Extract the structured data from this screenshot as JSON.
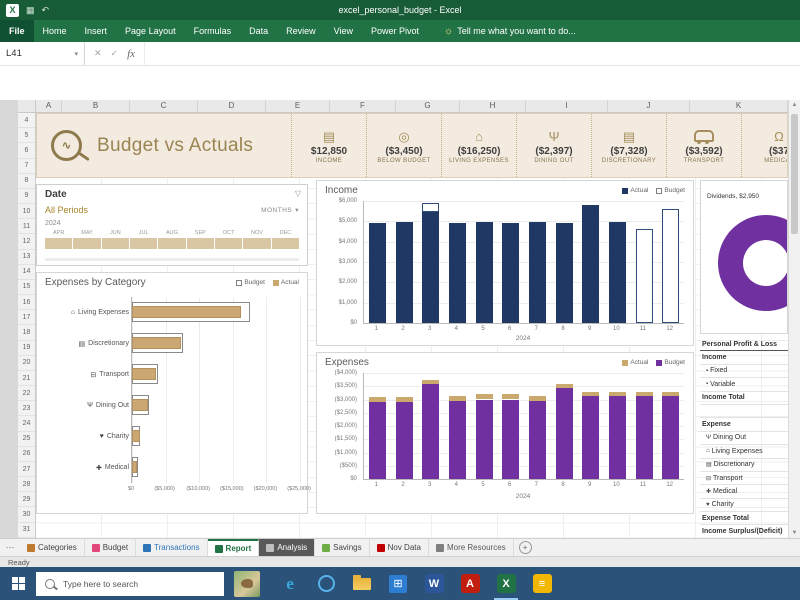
{
  "window": {
    "title": "excel_personal_budget - Excel",
    "quick_access_icons": [
      "excel-app-icon",
      "save-icon",
      "undo-icon"
    ]
  },
  "ribbon": {
    "tabs": [
      "File",
      "Home",
      "Insert",
      "Page Layout",
      "Formulas",
      "Data",
      "Review",
      "View",
      "Power Pivot"
    ],
    "tell_me": "Tell me what you want to do..."
  },
  "formula_bar": {
    "cell_ref": "L41",
    "formula": ""
  },
  "grid": {
    "col_headers": [
      "A",
      "B",
      "C",
      "D",
      "E",
      "F",
      "G",
      "H",
      "I",
      "J",
      "K"
    ],
    "row_start": 4,
    "row_end": 31
  },
  "banner": {
    "title": "Budget vs Actuals",
    "kpis": [
      {
        "icon": "cash-icon",
        "value": "$12,850",
        "label": "INCOME"
      },
      {
        "icon": "target-icon",
        "value": "($3,450)",
        "label": "BELOW BUDGET"
      },
      {
        "icon": "house-icon",
        "value": "($16,250)",
        "label": "LIVING EXPENSES"
      },
      {
        "icon": "dining-icon",
        "value": "($2,397)",
        "label": "DINING OUT"
      },
      {
        "icon": "card-icon",
        "value": "($7,328)",
        "label": "DISCRETIONARY"
      },
      {
        "icon": "car-icon",
        "value": "($3,592)",
        "label": "TRANSPORT"
      },
      {
        "icon": "stethoscope-icon",
        "value": "($37",
        "label": "MEDICAL"
      }
    ]
  },
  "slicer": {
    "title": "Date",
    "period_label": "All Periods",
    "granularity": "MONTHS",
    "year": "2024",
    "months": [
      "APR",
      "MAY",
      "JUN",
      "JUL",
      "AUG",
      "SEP",
      "OCT",
      "NOV",
      "DEC"
    ]
  },
  "chart_data": [
    {
      "id": "expenses_by_category",
      "type": "bar",
      "orientation": "horizontal",
      "title": "Expenses by Category",
      "legend": [
        {
          "label": "Budget",
          "swatch": "outline"
        },
        {
          "label": "Actual",
          "swatch": "#C9A96E"
        }
      ],
      "categories": [
        "Living Expenses",
        "Discretionary",
        "Transport",
        "Dining Out",
        "Charity",
        "Medical"
      ],
      "category_icons": [
        "house-icon",
        "card-icon",
        "car-icon",
        "dining-icon",
        "charity-icon",
        "medical-icon"
      ],
      "series": [
        {
          "name": "Actual",
          "values": [
            16250,
            7328,
            3592,
            2397,
            1150,
            750
          ]
        },
        {
          "name": "Budget",
          "values": [
            17500,
            7600,
            3800,
            2600,
            1250,
            850
          ]
        }
      ],
      "xticks": [
        "$0",
        "($5,000)",
        "($10,000)",
        "($15,000)",
        "($20,000)",
        "($25,000)"
      ],
      "xmax": 25000
    },
    {
      "id": "income",
      "type": "bar",
      "title": "Income",
      "legend": [
        {
          "label": "Actual",
          "swatch": "#1F3864"
        },
        {
          "label": "Budget",
          "swatch": "outline"
        }
      ],
      "x": [
        "1",
        "2",
        "3",
        "4",
        "5",
        "6",
        "7",
        "8",
        "9",
        "10",
        "11",
        "12"
      ],
      "xlabel": "2024",
      "series": [
        {
          "name": "Actual",
          "values": [
            4900,
            4950,
            5450,
            4900,
            4950,
            4900,
            4950,
            4900,
            5800,
            4950,
            null,
            null
          ]
        },
        {
          "name": "Budget",
          "values": [
            4900,
            4950,
            5900,
            4900,
            4950,
            4900,
            4950,
            4900,
            5800,
            4950,
            4600,
            5600
          ]
        }
      ],
      "yticks": [
        "$6,000",
        "$5,000",
        "$4,000",
        "$3,000",
        "$2,000",
        "$1,000",
        "$0"
      ],
      "ymax": 6000
    },
    {
      "id": "expenses",
      "type": "bar",
      "title": "Expenses",
      "note": "values are negative magnitudes",
      "legend": [
        {
          "label": "Actual",
          "swatch": "#C9A96E"
        },
        {
          "label": "Budget",
          "swatch": "#7030A0"
        }
      ],
      "x": [
        "1",
        "2",
        "3",
        "4",
        "5",
        "6",
        "7",
        "8",
        "9",
        "10",
        "11",
        "12"
      ],
      "xlabel": "2024",
      "series": [
        {
          "name": "Budget",
          "values": [
            2900,
            2900,
            3600,
            2950,
            3000,
            3000,
            2950,
            3450,
            3150,
            3150,
            3150,
            3150
          ]
        },
        {
          "name": "Actual",
          "values": [
            3100,
            3100,
            3750,
            3150,
            3200,
            3200,
            3150,
            3600,
            3300,
            3300,
            3300,
            3300
          ]
        }
      ],
      "yticks": [
        "($4,000)",
        "($3,500)",
        "($3,000)",
        "($2,500)",
        "($2,000)",
        "($1,500)",
        "($1,000)",
        "($500)",
        "$0"
      ],
      "ymax": 4000
    },
    {
      "id": "income_breakdown_donut",
      "type": "pie",
      "callout": "Dividends, $2,950",
      "slices": [
        {
          "label": "Dividends",
          "value": 2950,
          "color": "#7030A0"
        }
      ]
    }
  ],
  "pnl": {
    "rows": [
      {
        "label": "Personal Profit & Loss",
        "style": "header"
      },
      {
        "label": "Income",
        "style": "bold"
      },
      {
        "label": "Fixed",
        "icon": "pin-icon",
        "indent": true
      },
      {
        "label": "Variable",
        "icon": "pin-icon",
        "indent": true
      },
      {
        "label": "Income Total",
        "style": "bold"
      },
      {
        "label": ""
      },
      {
        "label": "Expense",
        "style": "bold"
      },
      {
        "label": "Dining Out",
        "icon": "dining-icon",
        "indent": true
      },
      {
        "label": "Living Expenses",
        "icon": "house-icon",
        "indent": true
      },
      {
        "label": "Discretionary",
        "icon": "card-icon",
        "indent": true
      },
      {
        "label": "Transport",
        "icon": "car-icon",
        "indent": true
      },
      {
        "label": "Medical",
        "icon": "medical-icon",
        "indent": true
      },
      {
        "label": "Charity",
        "icon": "charity-icon",
        "indent": true
      },
      {
        "label": "Expense Total",
        "style": "bold"
      },
      {
        "label": "Income Surplus/(Deficit)",
        "style": "bold"
      }
    ]
  },
  "sheet_tabs": {
    "overflow": "⋯",
    "tabs": [
      {
        "label": "Categories",
        "icon_color": "#C07A30",
        "text_color": "#444444"
      },
      {
        "label": "Budget",
        "icon_color": "#E2477B",
        "text_color": "#444444"
      },
      {
        "label": "Transactions",
        "icon_color": "#2E75B6",
        "text_color": "#2E75B6"
      },
      {
        "label": "Report",
        "icon_color": "#217346",
        "text_color": "#217346",
        "active": true
      },
      {
        "label": "Analysis",
        "icon_color": "#BFBFBF",
        "text_color": "#FFFFFF",
        "bg": "#595959"
      },
      {
        "label": "Savings",
        "icon_color": "#70AD47",
        "text_color": "#444444"
      },
      {
        "label": "Nov Data",
        "icon_color": "#C00000",
        "text_color": "#444444"
      },
      {
        "label": "More Resources",
        "icon_color": "#7F7F7F",
        "text_color": "#595959"
      }
    ],
    "add_label": "+"
  },
  "status_bar": {
    "mode": "Ready"
  },
  "taskbar": {
    "search_placeholder": "Type here to search",
    "icons": [
      {
        "name": "edge-browser-icon",
        "style": "edge",
        "glyph": "e",
        "color": "#38A9E0"
      },
      {
        "name": "cortana-icon",
        "style": "ring",
        "color": "#57B3EA"
      },
      {
        "name": "file-explorer-icon",
        "style": "folder",
        "color": "#F6C94A"
      },
      {
        "name": "store-icon",
        "style": "tile",
        "glyph": "⊞",
        "color": "#2D7DD2"
      },
      {
        "name": "word-icon",
        "style": "letter",
        "glyph": "W",
        "color": "#2B579A"
      },
      {
        "name": "acrobat-icon",
        "style": "letter",
        "glyph": "A",
        "color": "#C11E0F"
      },
      {
        "name": "excel-icon",
        "style": "letter",
        "glyph": "X",
        "color": "#217346",
        "active": true
      },
      {
        "name": "notes-icon",
        "style": "letter",
        "glyph": "≡",
        "color": "#F2B705"
      }
    ]
  }
}
